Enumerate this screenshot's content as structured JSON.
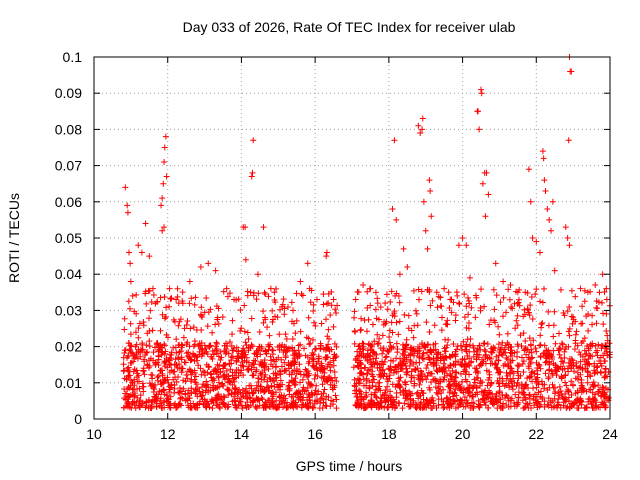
{
  "chart_data": {
    "type": "scatter",
    "title": "Day 033 of 2026, Rate Of TEC Index for receiver ulab",
    "xlabel": "GPS time / hours",
    "ylabel": "ROTI / TECUs",
    "xlim": [
      10,
      24
    ],
    "ylim": [
      0,
      0.1
    ],
    "xticks": [
      10,
      12,
      14,
      16,
      18,
      20,
      22,
      24
    ],
    "xtick_labels": [
      "10",
      "12",
      "14",
      "16",
      "18",
      "20",
      "22",
      "24"
    ],
    "yticks": [
      0,
      0.01,
      0.02,
      0.03,
      0.04,
      0.05,
      0.06,
      0.07,
      0.08,
      0.09,
      0.1
    ],
    "ytick_labels": [
      "0",
      "0.01",
      "0.02",
      "0.03",
      "0.04",
      "0.05",
      "0.06",
      "0.07",
      "0.08",
      "0.09",
      "0.1"
    ],
    "grid": true,
    "marker": "+",
    "color": "#ff0000",
    "coverage_segments": [
      {
        "start": 10.8,
        "end": 16.6
      },
      {
        "start": 17.05,
        "end": 24.0
      }
    ],
    "background_band": [
      0.003,
      0.03
    ],
    "series": [
      {
        "name": "ROTI",
        "points": [
          [
            10.85,
            0.064
          ],
          [
            10.9,
            0.059
          ],
          [
            10.92,
            0.057
          ],
          [
            10.95,
            0.046
          ],
          [
            10.98,
            0.043
          ],
          [
            11.0,
            0.038
          ],
          [
            11.05,
            0.034
          ],
          [
            11.2,
            0.048
          ],
          [
            11.3,
            0.046
          ],
          [
            11.4,
            0.054
          ],
          [
            11.5,
            0.045
          ],
          [
            11.6,
            0.036
          ],
          [
            11.82,
            0.059
          ],
          [
            11.85,
            0.061
          ],
          [
            11.88,
            0.065
          ],
          [
            11.9,
            0.071
          ],
          [
            11.92,
            0.075
          ],
          [
            11.95,
            0.078
          ],
          [
            11.97,
            0.067
          ],
          [
            11.9,
            0.053
          ],
          [
            11.85,
            0.052
          ],
          [
            12.05,
            0.036
          ],
          [
            12.3,
            0.032
          ],
          [
            12.6,
            0.038
          ],
          [
            12.9,
            0.042
          ],
          [
            13.1,
            0.043
          ],
          [
            13.3,
            0.041
          ],
          [
            13.6,
            0.036
          ],
          [
            13.8,
            0.033
          ],
          [
            14.05,
            0.053
          ],
          [
            14.1,
            0.053
          ],
          [
            14.12,
            0.044
          ],
          [
            14.28,
            0.067
          ],
          [
            14.3,
            0.068
          ],
          [
            14.32,
            0.077
          ],
          [
            14.45,
            0.04
          ],
          [
            14.6,
            0.053
          ],
          [
            14.8,
            0.036
          ],
          [
            15.1,
            0.031
          ],
          [
            15.4,
            0.03
          ],
          [
            15.6,
            0.038
          ],
          [
            15.8,
            0.043
          ],
          [
            15.85,
            0.036
          ],
          [
            16.05,
            0.033
          ],
          [
            16.3,
            0.045
          ],
          [
            16.32,
            0.046
          ],
          [
            16.5,
            0.033
          ],
          [
            17.1,
            0.033
          ],
          [
            17.3,
            0.037
          ],
          [
            17.5,
            0.036
          ],
          [
            17.7,
            0.032
          ],
          [
            17.9,
            0.032
          ],
          [
            18.1,
            0.058
          ],
          [
            18.15,
            0.077
          ],
          [
            18.2,
            0.055
          ],
          [
            18.3,
            0.04
          ],
          [
            18.4,
            0.047
          ],
          [
            18.5,
            0.042
          ],
          [
            18.8,
            0.081
          ],
          [
            18.85,
            0.079
          ],
          [
            18.9,
            0.08
          ],
          [
            18.92,
            0.083
          ],
          [
            18.95,
            0.06
          ],
          [
            19.0,
            0.052
          ],
          [
            19.05,
            0.047
          ],
          [
            19.1,
            0.066
          ],
          [
            19.12,
            0.063
          ],
          [
            19.15,
            0.056
          ],
          [
            19.3,
            0.035
          ],
          [
            19.5,
            0.036
          ],
          [
            19.7,
            0.033
          ],
          [
            19.9,
            0.048
          ],
          [
            20.0,
            0.05
          ],
          [
            20.1,
            0.048
          ],
          [
            20.2,
            0.039
          ],
          [
            20.4,
            0.085
          ],
          [
            20.42,
            0.085
          ],
          [
            20.45,
            0.08
          ],
          [
            20.5,
            0.091
          ],
          [
            20.52,
            0.09
          ],
          [
            20.55,
            0.065
          ],
          [
            20.6,
            0.068
          ],
          [
            20.65,
            0.068
          ],
          [
            20.7,
            0.062
          ],
          [
            20.62,
            0.056
          ],
          [
            20.9,
            0.043
          ],
          [
            21.1,
            0.038
          ],
          [
            21.3,
            0.037
          ],
          [
            21.5,
            0.035
          ],
          [
            21.7,
            0.035
          ],
          [
            21.8,
            0.069
          ],
          [
            21.85,
            0.06
          ],
          [
            21.9,
            0.05
          ],
          [
            22.0,
            0.049
          ],
          [
            22.1,
            0.046
          ],
          [
            22.18,
            0.074
          ],
          [
            22.2,
            0.072
          ],
          [
            22.22,
            0.066
          ],
          [
            22.25,
            0.063
          ],
          [
            22.3,
            0.058
          ],
          [
            22.35,
            0.055
          ],
          [
            22.4,
            0.052
          ],
          [
            22.45,
            0.06
          ],
          [
            22.5,
            0.041
          ],
          [
            22.8,
            0.053
          ],
          [
            22.85,
            0.05
          ],
          [
            22.88,
            0.077
          ],
          [
            22.9,
            0.1
          ],
          [
            22.92,
            0.096
          ],
          [
            22.95,
            0.096
          ],
          [
            22.9,
            0.048
          ],
          [
            23.2,
            0.036
          ],
          [
            23.4,
            0.035
          ],
          [
            23.6,
            0.037
          ],
          [
            23.8,
            0.04
          ],
          [
            23.9,
            0.036
          ]
        ]
      }
    ]
  }
}
